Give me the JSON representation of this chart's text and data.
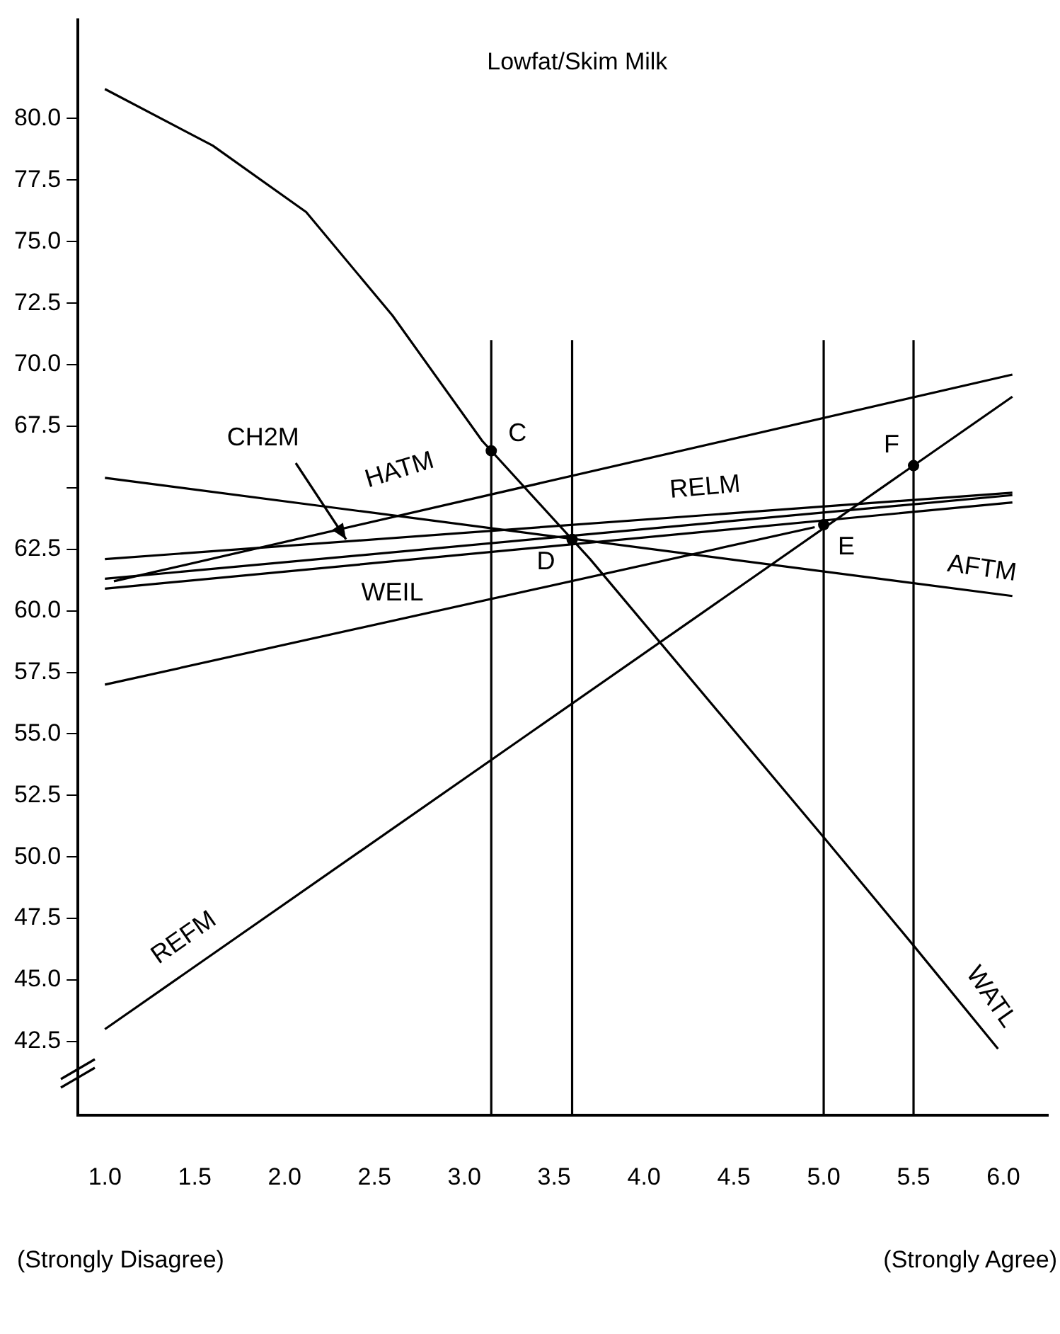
{
  "chart_data": {
    "type": "line",
    "title": "Lowfat/Skim Milk",
    "annotations": [
      "(Strongly Disagree)",
      "(Strongly Agree)",
      {
        "text": "C",
        "x": 3.15,
        "y": 66.5
      },
      {
        "text": "D",
        "x": 3.6,
        "y": 62.9
      },
      {
        "text": "E",
        "x": 5.0,
        "y": 63.5
      },
      {
        "text": "F",
        "x": 5.5,
        "y": 65.9
      }
    ],
    "series": [
      {
        "name": "WATL",
        "color": "#000000",
        "x": [
          1.0,
          1.6,
          2.12,
          2.6,
          3.1,
          3.7,
          5.0,
          5.5,
          5.97
        ],
        "values": [
          81.2,
          78.9,
          76.2,
          72.0,
          66.9,
          62.1,
          50.8,
          46.4,
          42.2
        ]
      },
      {
        "name": "REFM",
        "color": "#000000",
        "x": [
          1.0,
          6.05
        ],
        "values": [
          43.0,
          68.7
        ]
      },
      {
        "name": "HATM",
        "color": "#000000",
        "x": [
          1.05,
          6.05
        ],
        "values": [
          61.2,
          69.6
        ]
      },
      {
        "name": "AFTM",
        "color": "#000000",
        "x": [
          1.0,
          6.05
        ],
        "values": [
          65.4,
          60.6
        ]
      },
      {
        "name": "RELM",
        "color": "#000000",
        "x": [
          1.0,
          6.05
        ],
        "values": [
          62.1,
          64.8
        ]
      },
      {
        "name": "CH2M",
        "color": "#000000",
        "x": [
          1.0,
          6.05
        ],
        "values": [
          61.3,
          64.7
        ]
      },
      {
        "name": "WEIL",
        "color": "#000000",
        "x": [
          1.0,
          6.05
        ],
        "values": [
          60.9,
          64.4
        ]
      },
      {
        "color": "#000000",
        "x": [
          1.0,
          4.95
        ],
        "values": [
          57.0,
          63.4
        ]
      }
    ],
    "xlim": [
      0.85,
      6.25
    ],
    "xticks": [
      {
        "value": 1,
        "label": "1.0"
      },
      1.5,
      {
        "value": 2,
        "label": "2.0"
      },
      2.5,
      {
        "value": 3,
        "label": "3.0"
      },
      3.5,
      {
        "value": 4,
        "label": "4.0"
      },
      4.5,
      {
        "value": 5,
        "label": "5.0"
      },
      5.5,
      {
        "value": 6,
        "label": "6.0"
      }
    ],
    "ylim": [
      39.5,
      84
    ],
    "yticks": [
      {
        "value": 42.5,
        "label": "42.5"
      },
      {
        "value": 45,
        "label": "45.0"
      },
      {
        "value": 47.5,
        "label": "47.5"
      },
      {
        "value": 50,
        "label": "50.0"
      },
      {
        "value": 52.5,
        "label": "52.5"
      },
      {
        "value": 55,
        "label": "55.0"
      },
      {
        "value": 57.5,
        "label": "57.5"
      },
      {
        "value": 60,
        "label": "60.0"
      },
      {
        "value": 62.5,
        "label": "62.5"
      },
      {
        "value": 65,
        "label": null
      },
      {
        "value": 67.5,
        "label": "67.5"
      },
      {
        "value": 70,
        "label": "70.0"
      },
      {
        "value": 72.5,
        "label": "72.5"
      },
      {
        "value": 75,
        "label": "75.0"
      },
      {
        "value": 77.5,
        "label": "77.5"
      },
      {
        "value": 80,
        "label": "80.0"
      }
    ],
    "ref_lines": [
      {
        "axis": "x",
        "value": 3.15
      },
      {
        "axis": "x",
        "value": 3.6
      },
      {
        "axis": "x",
        "value": 5.0
      },
      {
        "axis": "x",
        "value": 5.5
      }
    ],
    "grid": false,
    "legend": false,
    "marker": "none",
    "line_style": "solid"
  }
}
